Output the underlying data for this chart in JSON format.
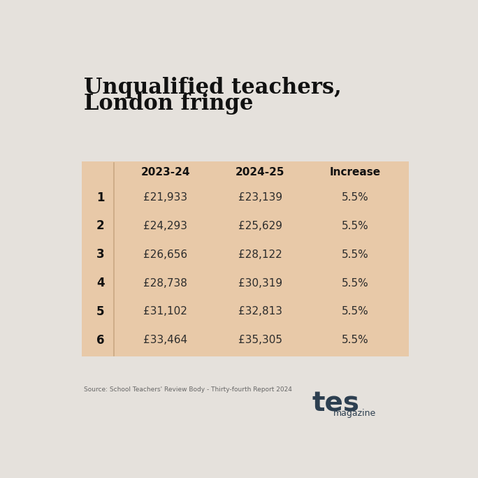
{
  "title_line1": "Unqualified teachers,",
  "title_line2": "London fringe",
  "bg_color": "#e5e1dc",
  "table_bg_color": "#e8c9a8",
  "header_col1": "2023-24",
  "header_col2": "2024-25",
  "header_col3": "Increase",
  "rows": [
    {
      "point": "1",
      "val2023": "£21,933",
      "val2024": "£23,139",
      "increase": "5.5%"
    },
    {
      "point": "2",
      "val2023": "£24,293",
      "val2024": "£25,629",
      "increase": "5.5%"
    },
    {
      "point": "3",
      "val2023": "£26,656",
      "val2024": "£28,122",
      "increase": "5.5%"
    },
    {
      "point": "4",
      "val2023": "£28,738",
      "val2024": "£30,319",
      "increase": "5.5%"
    },
    {
      "point": "5",
      "val2023": "£31,102",
      "val2024": "£32,813",
      "increase": "5.5%"
    },
    {
      "point": "6",
      "val2023": "£33,464",
      "val2024": "£35,305",
      "increase": "5.5%"
    }
  ],
  "source_text": "Source: School Teachers' Review Body - Thirty-fourth Report 2024",
  "tes_color": "#2d3f50",
  "title_color": "#111111",
  "text_color": "#2c2c2c",
  "bold_color": "#111111",
  "divider_color": "#c9a882",
  "title_fontsize": 22,
  "header_fontsize": 11,
  "row_fontsize": 11,
  "point_fontsize": 12
}
